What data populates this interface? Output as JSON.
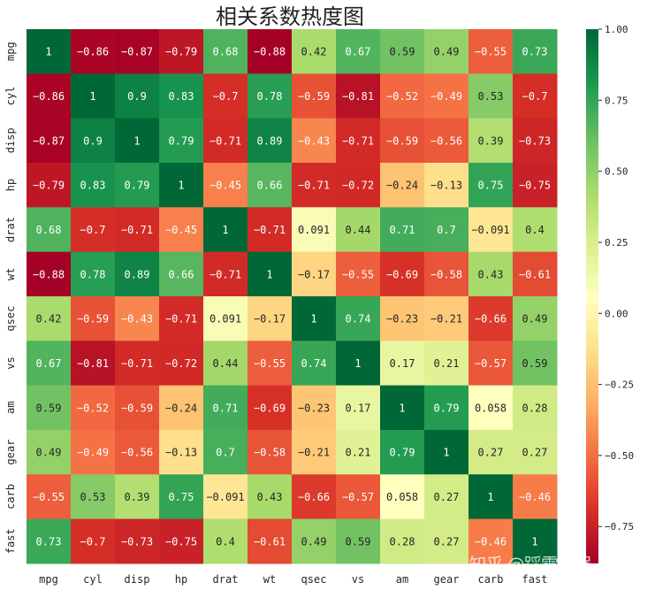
{
  "chart_data": {
    "type": "heatmap",
    "title": "相关系数热度图",
    "labels": [
      "mpg",
      "cyl",
      "disp",
      "hp",
      "drat",
      "wt",
      "qsec",
      "vs",
      "am",
      "gear",
      "carb",
      "fast"
    ],
    "values": [
      [
        1,
        -0.86,
        -0.87,
        -0.79,
        0.68,
        -0.88,
        0.42,
        0.67,
        0.59,
        0.49,
        -0.55,
        0.73
      ],
      [
        -0.86,
        1,
        0.9,
        0.83,
        -0.7,
        0.78,
        -0.59,
        -0.81,
        -0.52,
        -0.49,
        0.53,
        -0.7
      ],
      [
        -0.87,
        0.9,
        1,
        0.79,
        -0.71,
        0.89,
        -0.43,
        -0.71,
        -0.59,
        -0.56,
        0.39,
        -0.73
      ],
      [
        -0.79,
        0.83,
        0.79,
        1,
        -0.45,
        0.66,
        -0.71,
        -0.72,
        -0.24,
        -0.13,
        0.75,
        -0.75
      ],
      [
        0.68,
        -0.7,
        -0.71,
        -0.45,
        1,
        -0.71,
        0.091,
        0.44,
        0.71,
        0.7,
        -0.091,
        0.4
      ],
      [
        -0.88,
        0.78,
        0.89,
        0.66,
        -0.71,
        1,
        -0.17,
        -0.55,
        -0.69,
        -0.58,
        0.43,
        -0.61
      ],
      [
        0.42,
        -0.59,
        -0.43,
        -0.71,
        0.091,
        -0.17,
        1,
        0.74,
        -0.23,
        -0.21,
        -0.66,
        0.49
      ],
      [
        0.67,
        -0.81,
        -0.71,
        -0.72,
        0.44,
        -0.55,
        0.74,
        1,
        0.17,
        0.21,
        -0.57,
        0.59
      ],
      [
        0.59,
        -0.52,
        -0.59,
        -0.24,
        0.71,
        -0.69,
        -0.23,
        0.17,
        1,
        0.79,
        0.058,
        0.28
      ],
      [
        0.49,
        -0.49,
        -0.56,
        -0.13,
        0.7,
        -0.58,
        -0.21,
        0.21,
        0.79,
        1,
        0.27,
        0.27
      ],
      [
        -0.55,
        0.53,
        0.39,
        0.75,
        -0.091,
        0.43,
        -0.66,
        -0.57,
        0.058,
        0.27,
        1,
        -0.46
      ],
      [
        0.73,
        -0.7,
        -0.73,
        -0.75,
        0.4,
        -0.61,
        0.49,
        0.59,
        0.28,
        0.27,
        -0.46,
        1
      ]
    ],
    "colormap": "RdYlGn",
    "vmin": -0.88,
    "vmax": 1.0,
    "colorbar_ticks": [
      "1.00",
      "0.75",
      "0.50",
      "0.25",
      "0.00",
      "−0.25",
      "−0.50",
      "−0.75"
    ],
    "colorbar_tick_values": [
      1,
      0.75,
      0.5,
      0.25,
      0,
      -0.25,
      -0.5,
      -0.75
    ],
    "annotated": true,
    "colorbar_position": "right"
  },
  "watermark": "知乎 @踩雷机器人028"
}
